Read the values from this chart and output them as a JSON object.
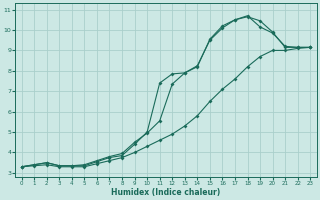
{
  "xlabel": "Humidex (Indice chaleur)",
  "bg_color": "#cce8e4",
  "grid_color": "#aacfcb",
  "line_color": "#1a6b5a",
  "xlim": [
    -0.5,
    23.5
  ],
  "ylim": [
    2.8,
    11.3
  ],
  "xticks": [
    0,
    1,
    2,
    3,
    4,
    5,
    6,
    7,
    8,
    9,
    10,
    11,
    12,
    13,
    14,
    15,
    16,
    17,
    18,
    19,
    20,
    21,
    22,
    23
  ],
  "yticks": [
    3,
    4,
    5,
    6,
    7,
    8,
    9,
    10,
    11
  ],
  "line1_x": [
    0,
    1,
    2,
    3,
    4,
    5,
    6,
    7,
    8,
    9,
    10,
    11,
    12,
    13,
    14,
    15,
    16,
    17,
    18,
    19,
    20,
    21,
    22,
    23
  ],
  "line1_y": [
    3.3,
    3.4,
    3.5,
    3.35,
    3.35,
    3.35,
    3.55,
    3.75,
    3.85,
    4.4,
    5.0,
    7.4,
    7.85,
    7.9,
    8.25,
    9.5,
    10.1,
    10.5,
    10.7,
    10.15,
    9.85,
    9.2,
    9.15,
    9.15
  ],
  "line2_x": [
    0,
    1,
    2,
    3,
    4,
    5,
    6,
    7,
    8,
    9,
    10,
    11,
    12,
    13,
    14,
    15,
    16,
    17,
    18,
    19,
    20,
    21,
    22,
    23
  ],
  "line2_y": [
    3.3,
    3.4,
    3.5,
    3.35,
    3.35,
    3.4,
    3.6,
    3.8,
    3.95,
    4.5,
    4.95,
    5.55,
    7.35,
    7.9,
    8.2,
    9.55,
    10.2,
    10.5,
    10.65,
    10.45,
    9.9,
    9.15,
    9.15,
    9.15
  ],
  "line3_x": [
    0,
    1,
    2,
    3,
    4,
    5,
    6,
    7,
    8,
    9,
    10,
    11,
    12,
    13,
    14,
    15,
    16,
    17,
    18,
    19,
    20,
    21,
    22,
    23
  ],
  "line3_y": [
    3.3,
    3.35,
    3.4,
    3.3,
    3.3,
    3.3,
    3.45,
    3.6,
    3.75,
    4.0,
    4.3,
    4.6,
    4.9,
    5.3,
    5.8,
    6.5,
    7.1,
    7.6,
    8.2,
    8.7,
    9.0,
    9.0,
    9.1,
    9.15
  ]
}
